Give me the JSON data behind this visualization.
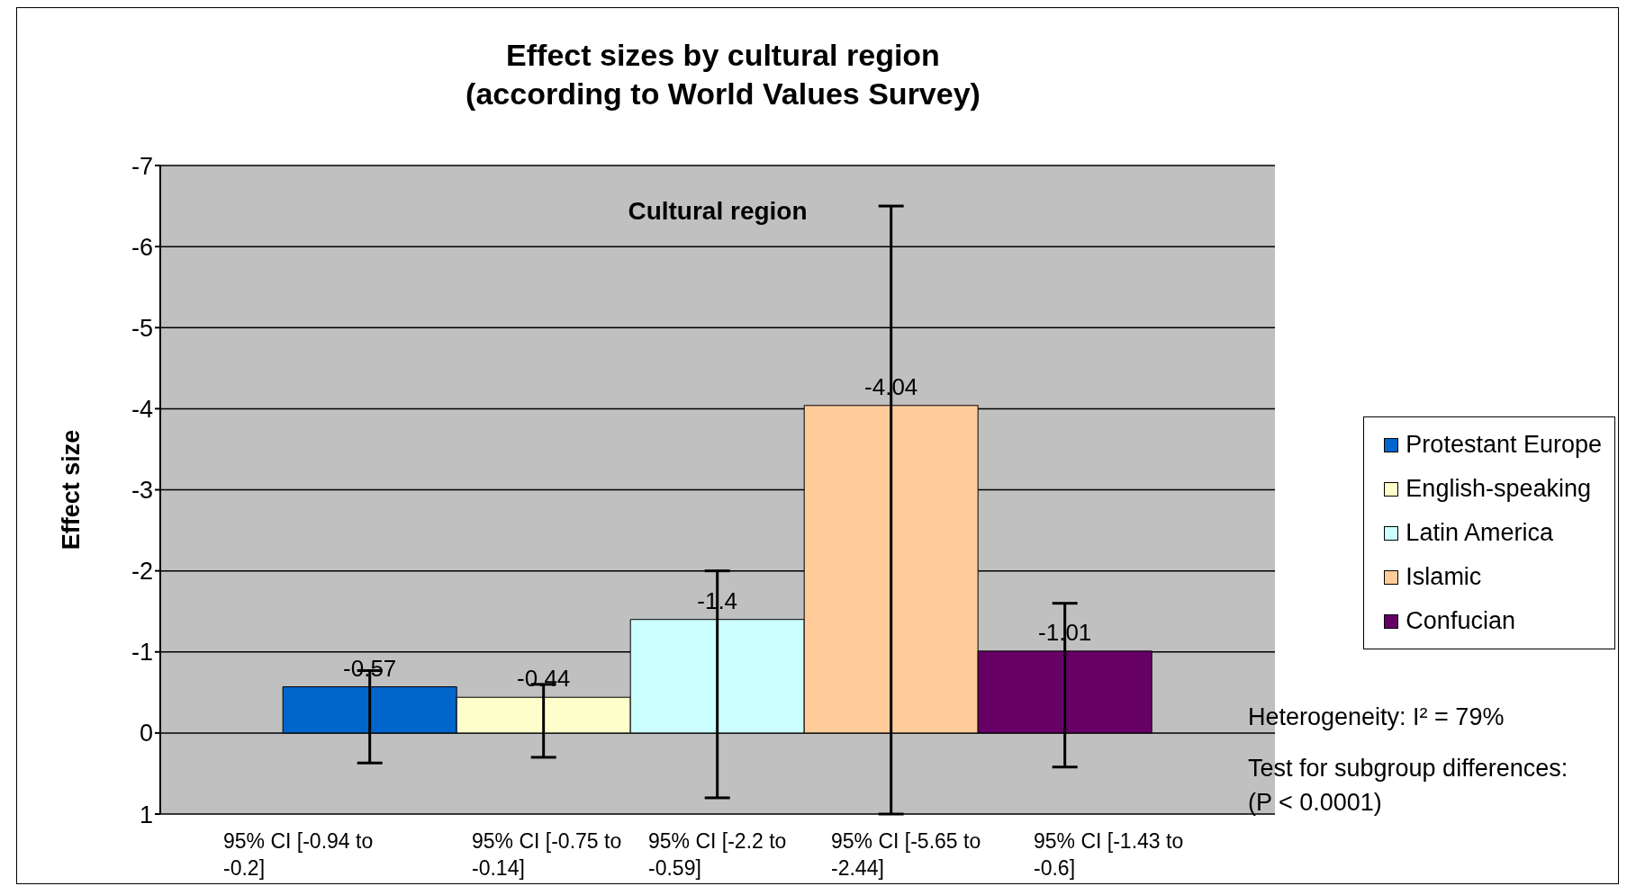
{
  "chart_data": {
    "type": "bar",
    "title": "Effect sizes by cultural region",
    "subtitle": "(according to World Values Survey)",
    "ylabel": "Effect size",
    "categories": [
      "Cultural region"
    ],
    "series": [
      {
        "name": "Protestant Europe",
        "color": "#0066cc",
        "values": [
          -0.57
        ],
        "errors": [
          [
            -0.77,
            0.37
          ]
        ]
      },
      {
        "name": "English-speaking",
        "color": "#ffffcc",
        "values": [
          -0.44
        ],
        "errors": [
          [
            -0.6,
            0.3
          ]
        ]
      },
      {
        "name": "Latin America",
        "color": "#ccffff",
        "values": [
          -1.4
        ],
        "errors": [
          [
            -2.0,
            0.8
          ]
        ]
      },
      {
        "name": "Islamic",
        "color": "#ffcc99",
        "values": [
          -4.04
        ],
        "errors": [
          [
            -6.5,
            1
          ]
        ]
      },
      {
        "name": "Confucian",
        "color": "#660066",
        "values": [
          -1.01
        ],
        "errors": [
          [
            -1.6,
            0.42
          ]
        ]
      }
    ],
    "ylim": [
      1,
      -7
    ],
    "yticks": [
      1,
      0,
      -1,
      -2,
      -3,
      -4,
      -5,
      -6,
      -7
    ],
    "grid": "y",
    "legend": "right",
    "data_labels": true,
    "annotations": [
      "95% CI [-0.94 to -0.2]",
      "95% CI [-0.75 to -0.14]",
      "95% CI [-2.2 to -0.59]",
      "95% CI [-5.65 to -2.44]",
      "95% CI [-1.43 to -0.6]",
      "Heterogeneity: I² = 79%",
      "Test for subgroup differences: (P < 0.0001)"
    ]
  }
}
